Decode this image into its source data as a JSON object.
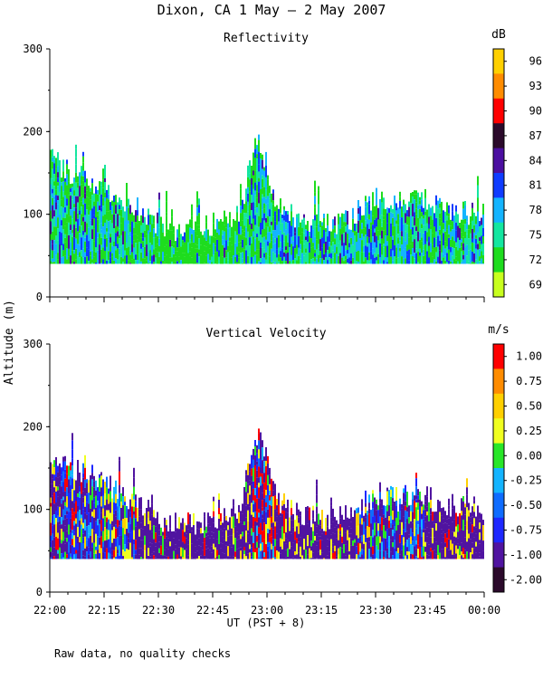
{
  "chart_data": [
    {
      "type": "heatmap",
      "title": "Reflectivity",
      "figure_title": "Dixon, CA  1 May —  2 May 2007",
      "ylabel": "Altitude (m)",
      "xlabel": "UT  (PST + 8)",
      "ylim": [
        0,
        300
      ],
      "yticks": [
        "0",
        "100",
        "200",
        "300"
      ],
      "xticks": [
        "22:00",
        "22:15",
        "22:30",
        "22:45",
        "23:00",
        "23:15",
        "23:30",
        "23:45",
        "00:00"
      ],
      "colorbar": {
        "unit": "dB",
        "labels": [
          "96",
          "93",
          "90",
          "87",
          "84",
          "81",
          "78",
          "75",
          "72",
          "69"
        ],
        "colors": [
          "#ffd000",
          "#ff8c00",
          "#ff0000",
          "#2b0a2b",
          "#4b0fa0",
          "#0f3cff",
          "#14b4ff",
          "#14e6a0",
          "#1edc1e",
          "#c8ff1e"
        ]
      },
      "echo_base_m": 40,
      "echo_top_profile_m": [
        [
          0,
          170
        ],
        [
          4,
          150
        ],
        [
          8,
          145
        ],
        [
          12,
          130
        ],
        [
          16,
          120
        ],
        [
          20,
          105
        ],
        [
          24,
          90
        ],
        [
          28,
          80
        ],
        [
          32,
          80
        ],
        [
          36,
          85
        ],
        [
          40,
          90
        ],
        [
          44,
          105
        ],
        [
          46,
          160
        ],
        [
          48,
          195
        ],
        [
          50,
          150
        ],
        [
          52,
          110
        ],
        [
          56,
          95
        ],
        [
          60,
          90
        ],
        [
          64,
          85
        ],
        [
          68,
          90
        ],
        [
          72,
          105
        ],
        [
          76,
          120
        ],
        [
          80,
          110
        ],
        [
          84,
          120
        ],
        [
          88,
          110
        ],
        [
          92,
          105
        ],
        [
          96,
          100
        ],
        [
          100,
          100
        ]
      ]
    },
    {
      "type": "heatmap",
      "title": "Vertical Velocity",
      "ylabel": "Altitude (m)",
      "xlabel": "UT  (PST + 8)",
      "ylim": [
        0,
        300
      ],
      "yticks": [
        "0",
        "100",
        "200",
        "300"
      ],
      "xticks": [
        "22:00",
        "22:15",
        "22:30",
        "22:45",
        "23:00",
        "23:15",
        "23:30",
        "23:45",
        "00:00"
      ],
      "colorbar": {
        "unit": "m/s",
        "labels": [
          "1.00",
          "0.75",
          "0.50",
          "0.25",
          "0.00",
          "-0.25",
          "-0.50",
          "-0.75",
          "-1.00",
          "-2.00"
        ],
        "colors": [
          "#ff0000",
          "#ff8c00",
          "#ffd000",
          "#f0ff20",
          "#28e628",
          "#14b4ff",
          "#0f6cff",
          "#1e28ff",
          "#5014a0",
          "#2b0a2b"
        ]
      },
      "echo_base_m": 40,
      "echo_top_profile_m": [
        [
          0,
          170
        ],
        [
          4,
          150
        ],
        [
          8,
          145
        ],
        [
          12,
          130
        ],
        [
          16,
          120
        ],
        [
          20,
          105
        ],
        [
          24,
          90
        ],
        [
          28,
          80
        ],
        [
          32,
          80
        ],
        [
          36,
          85
        ],
        [
          40,
          90
        ],
        [
          44,
          105
        ],
        [
          46,
          160
        ],
        [
          48,
          195
        ],
        [
          50,
          150
        ],
        [
          52,
          110
        ],
        [
          56,
          95
        ],
        [
          60,
          90
        ],
        [
          64,
          85
        ],
        [
          68,
          90
        ],
        [
          72,
          105
        ],
        [
          76,
          120
        ],
        [
          80,
          110
        ],
        [
          84,
          120
        ],
        [
          88,
          110
        ],
        [
          92,
          105
        ],
        [
          96,
          100
        ],
        [
          100,
          100
        ]
      ]
    }
  ],
  "footer_note": "Raw data, no quality checks"
}
